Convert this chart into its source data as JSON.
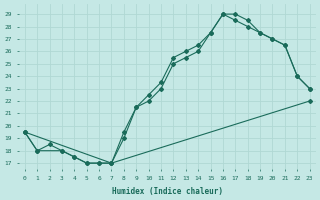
{
  "xlabel": "Humidex (Indice chaleur)",
  "ylabel": "",
  "bg_color": "#c5e8e5",
  "grid_color": "#b0d8d4",
  "line_color": "#1a6b5a",
  "xlim": [
    -0.5,
    23.5
  ],
  "ylim": [
    16.5,
    29.8
  ],
  "xticks": [
    0,
    1,
    2,
    3,
    4,
    5,
    6,
    7,
    8,
    9,
    10,
    11,
    12,
    13,
    14,
    15,
    16,
    17,
    18,
    19,
    20,
    21,
    22,
    23
  ],
  "yticks": [
    17,
    18,
    19,
    20,
    21,
    22,
    23,
    24,
    25,
    26,
    27,
    28,
    29
  ],
  "line1_x": [
    0,
    1,
    3,
    4,
    5,
    6,
    7,
    23
  ],
  "line1_y": [
    19.5,
    18.0,
    18.0,
    17.5,
    17.0,
    17.0,
    17.0,
    22.0
  ],
  "line2_x": [
    0,
    1,
    2,
    3,
    4,
    5,
    6,
    7,
    8,
    9,
    10,
    11,
    12,
    13,
    14,
    15,
    16,
    17,
    18,
    19,
    20,
    21,
    22,
    23
  ],
  "line2_y": [
    19.5,
    18.0,
    18.5,
    18.0,
    17.5,
    17.0,
    17.0,
    17.0,
    19.0,
    21.5,
    22.0,
    23.0,
    25.0,
    25.5,
    26.0,
    27.5,
    29.0,
    28.5,
    28.0,
    27.5,
    27.0,
    26.5,
    24.0,
    23.0
  ],
  "line3_x": [
    0,
    7,
    8,
    9,
    10,
    11,
    12,
    13,
    14,
    15,
    16,
    17,
    18,
    19,
    20,
    21,
    22,
    23
  ],
  "line3_y": [
    19.5,
    17.0,
    19.5,
    21.5,
    22.5,
    23.5,
    25.5,
    26.0,
    26.5,
    27.5,
    29.0,
    29.0,
    28.5,
    27.5,
    27.0,
    26.5,
    24.0,
    23.0
  ]
}
